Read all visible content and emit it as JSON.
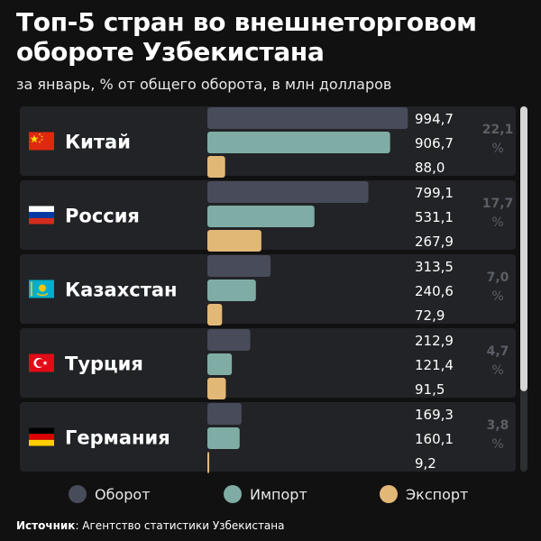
{
  "title": "Топ-5 стран во внешнеторговом обороте Узбекистана",
  "subtitle": "за январь, % от общего оборота, в млн долларов",
  "colors": {
    "turnover": "#474b5a",
    "import": "#7fada5",
    "export": "#e2b877",
    "row_bg": "#222327"
  },
  "legend": {
    "turnover": "Оборот",
    "import": "Импорт",
    "export": "Экспорт"
  },
  "source": {
    "label": "Источник",
    "text": ": Агентство статистики Узбекистана"
  },
  "chart_data": {
    "type": "bar",
    "orientation": "horizontal",
    "categories": [
      "Китай",
      "Россия",
      "Казахстан",
      "Турция",
      "Германия"
    ],
    "flags": [
      "china-flag-icon",
      "russia-flag-icon",
      "kazakhstan-flag-icon",
      "turkey-flag-icon",
      "germany-flag-icon"
    ],
    "series": [
      {
        "name": "Оборот",
        "values": [
          994.7,
          799.1,
          313.5,
          212.9,
          169.3
        ],
        "labels": [
          "994,7",
          "799,1",
          "313,5",
          "212,9",
          "169,3"
        ]
      },
      {
        "name": "Импорт",
        "values": [
          906.7,
          531.1,
          240.6,
          121.4,
          160.1
        ],
        "labels": [
          "906,7",
          "531,1",
          "240,6",
          "121,4",
          "160,1"
        ]
      },
      {
        "name": "Экспорт",
        "values": [
          88.0,
          267.9,
          72.9,
          91.5,
          9.2
        ],
        "labels": [
          "88,0",
          "267,9",
          "72,9",
          "91,5",
          "9,2"
        ]
      }
    ],
    "shares": [
      "22,1",
      "17,7",
      "7,0",
      "4,7",
      "3,8"
    ],
    "share_unit": "%",
    "xlim": [
      0,
      1000
    ]
  }
}
